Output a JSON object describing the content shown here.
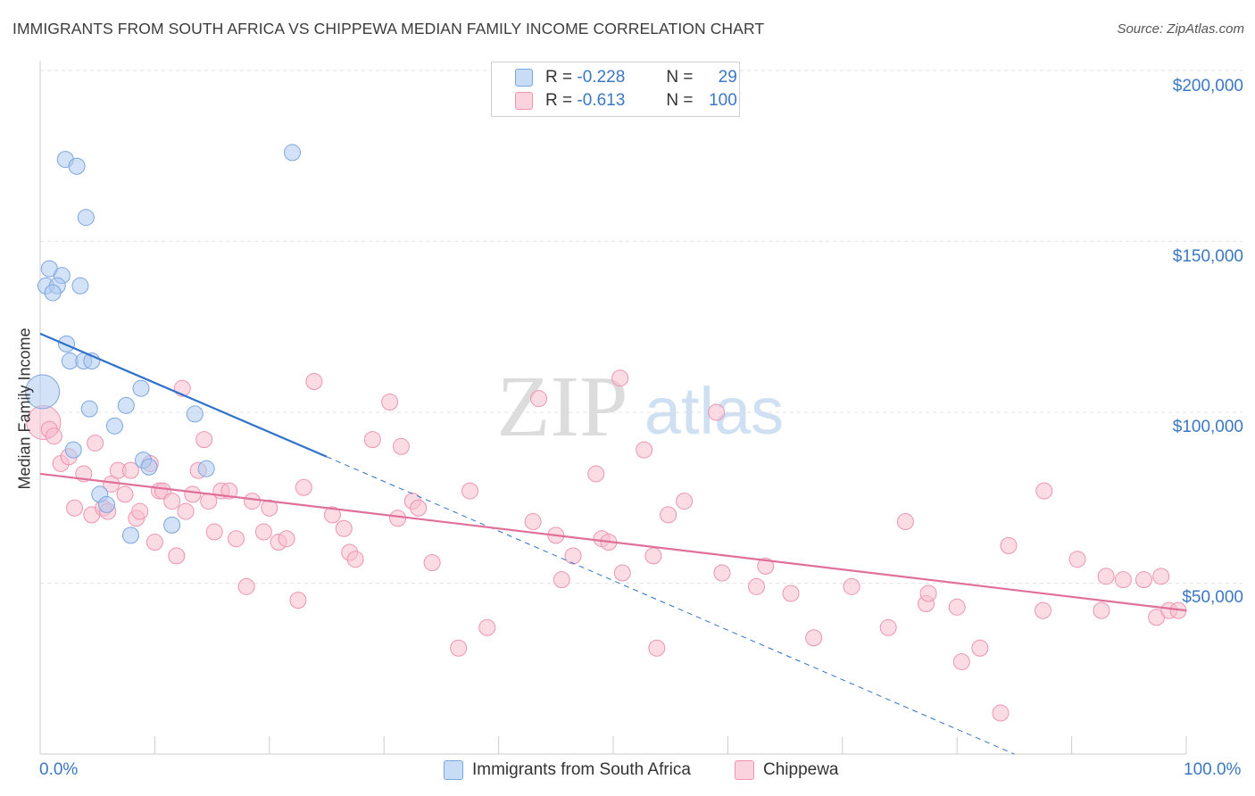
{
  "title": "IMMIGRANTS FROM SOUTH AFRICA VS CHIPPEWA MEDIAN FAMILY INCOME CORRELATION CHART",
  "source": "Source: ZipAtlas.com",
  "watermark": {
    "zip": "ZIP",
    "atlas": "atlas"
  },
  "legend_top": {
    "rows": [
      {
        "r_label": "R =",
        "r_value": "-0.228",
        "n_label": "N =",
        "n_value": "29",
        "color": "#aecbf0"
      },
      {
        "r_label": "R =",
        "r_value": "-0.613",
        "n_label": "N =",
        "n_value": "100",
        "color": "#f7bfd0"
      }
    ]
  },
  "legend_bottom": [
    {
      "label": "Immigrants from South Africa",
      "color": "#aecbf0"
    },
    {
      "label": "Chippewa",
      "color": "#f7bfd0"
    }
  ],
  "chart_data": {
    "type": "scatter",
    "title": "IMMIGRANTS FROM SOUTH AFRICA VS CHIPPEWA MEDIAN FAMILY INCOME CORRELATION CHART",
    "xlabel": "",
    "ylabel": "Median Family Income",
    "xlim": [
      0,
      100
    ],
    "ylim": [
      0,
      210000
    ],
    "x_tick_labels": [
      "0.0%",
      "100.0%"
    ],
    "y_ticks": [
      50000,
      100000,
      150000,
      200000
    ],
    "y_tick_labels": [
      "$50,000",
      "$100,000",
      "$150,000",
      "$200,000"
    ],
    "grid": true,
    "legend_position": "top-center",
    "series": [
      {
        "name": "Immigrants from South Africa",
        "color": "#aecbf0",
        "stroke": "#7aa6df",
        "trend_color": "#2f72c9",
        "trend": {
          "x0": 0,
          "y0": 123000,
          "x1": 25,
          "y1": 87000,
          "dash_to_x": 85,
          "dash_to_y": 0
        },
        "points": [
          {
            "x": 2.2,
            "y": 174000
          },
          {
            "x": 3.2,
            "y": 172000
          },
          {
            "x": 22.0,
            "y": 176000
          },
          {
            "x": 4.0,
            "y": 157000
          },
          {
            "x": 0.8,
            "y": 142000
          },
          {
            "x": 1.9,
            "y": 140000
          },
          {
            "x": 0.5,
            "y": 137000
          },
          {
            "x": 1.5,
            "y": 137000
          },
          {
            "x": 3.5,
            "y": 137000
          },
          {
            "x": 1.1,
            "y": 135000
          },
          {
            "x": 2.3,
            "y": 120000
          },
          {
            "x": 2.6,
            "y": 115000
          },
          {
            "x": 3.8,
            "y": 115000
          },
          {
            "x": 4.5,
            "y": 115000
          },
          {
            "x": 0.2,
            "y": 106000,
            "size": "large"
          },
          {
            "x": 8.8,
            "y": 107000
          },
          {
            "x": 4.3,
            "y": 101000
          },
          {
            "x": 7.5,
            "y": 102000
          },
          {
            "x": 13.5,
            "y": 99500
          },
          {
            "x": 6.5,
            "y": 96000
          },
          {
            "x": 2.9,
            "y": 89000
          },
          {
            "x": 9.0,
            "y": 86000
          },
          {
            "x": 9.5,
            "y": 84000
          },
          {
            "x": 14.5,
            "y": 83500
          },
          {
            "x": 5.2,
            "y": 76000
          },
          {
            "x": 5.8,
            "y": 73000
          },
          {
            "x": 11.5,
            "y": 67000
          },
          {
            "x": 7.9,
            "y": 64000
          }
        ]
      },
      {
        "name": "Chippewa",
        "color": "#f7bfd0",
        "stroke": "#ee94b1",
        "trend_color": "#e0709a",
        "trend": {
          "x0": 0,
          "y0": 82000,
          "x1": 100,
          "y1": 42000
        },
        "points": [
          {
            "x": 0.3,
            "y": 97000,
            "size": "large"
          },
          {
            "x": 0.8,
            "y": 95000
          },
          {
            "x": 1.2,
            "y": 93000
          },
          {
            "x": 1.8,
            "y": 85000
          },
          {
            "x": 2.5,
            "y": 87000
          },
          {
            "x": 3.0,
            "y": 72000
          },
          {
            "x": 3.8,
            "y": 82000
          },
          {
            "x": 4.5,
            "y": 70000
          },
          {
            "x": 4.8,
            "y": 91000
          },
          {
            "x": 5.5,
            "y": 72000
          },
          {
            "x": 5.9,
            "y": 71000
          },
          {
            "x": 6.2,
            "y": 79000
          },
          {
            "x": 6.8,
            "y": 83000
          },
          {
            "x": 7.4,
            "y": 76000
          },
          {
            "x": 7.9,
            "y": 83000
          },
          {
            "x": 8.4,
            "y": 69000
          },
          {
            "x": 8.7,
            "y": 71000
          },
          {
            "x": 9.6,
            "y": 85000
          },
          {
            "x": 10.0,
            "y": 62000
          },
          {
            "x": 10.4,
            "y": 77000
          },
          {
            "x": 10.7,
            "y": 77000
          },
          {
            "x": 11.5,
            "y": 74000
          },
          {
            "x": 11.9,
            "y": 58000
          },
          {
            "x": 12.7,
            "y": 71000
          },
          {
            "x": 12.4,
            "y": 107000
          },
          {
            "x": 13.3,
            "y": 76000
          },
          {
            "x": 13.8,
            "y": 83000
          },
          {
            "x": 14.3,
            "y": 92000
          },
          {
            "x": 14.7,
            "y": 74000
          },
          {
            "x": 15.2,
            "y": 65000
          },
          {
            "x": 15.8,
            "y": 77000
          },
          {
            "x": 16.5,
            "y": 77000
          },
          {
            "x": 17.1,
            "y": 63000
          },
          {
            "x": 18.0,
            "y": 49000
          },
          {
            "x": 18.5,
            "y": 74000
          },
          {
            "x": 19.5,
            "y": 65000
          },
          {
            "x": 20.0,
            "y": 72000
          },
          {
            "x": 20.8,
            "y": 62000
          },
          {
            "x": 21.5,
            "y": 63000
          },
          {
            "x": 22.5,
            "y": 45000
          },
          {
            "x": 23.0,
            "y": 78000
          },
          {
            "x": 23.9,
            "y": 109000
          },
          {
            "x": 25.5,
            "y": 70000
          },
          {
            "x": 26.5,
            "y": 66000
          },
          {
            "x": 27.0,
            "y": 59000
          },
          {
            "x": 27.5,
            "y": 57000
          },
          {
            "x": 29.0,
            "y": 92000
          },
          {
            "x": 30.5,
            "y": 103000
          },
          {
            "x": 31.2,
            "y": 69000
          },
          {
            "x": 31.5,
            "y": 90000
          },
          {
            "x": 32.5,
            "y": 74000
          },
          {
            "x": 33.0,
            "y": 72000
          },
          {
            "x": 34.2,
            "y": 56000
          },
          {
            "x": 36.5,
            "y": 31000
          },
          {
            "x": 37.5,
            "y": 77000
          },
          {
            "x": 39.0,
            "y": 37000
          },
          {
            "x": 43.0,
            "y": 68000
          },
          {
            "x": 43.5,
            "y": 104000
          },
          {
            "x": 45.0,
            "y": 64000
          },
          {
            "x": 45.5,
            "y": 51000
          },
          {
            "x": 46.5,
            "y": 58000
          },
          {
            "x": 48.5,
            "y": 82000
          },
          {
            "x": 49.0,
            "y": 63000
          },
          {
            "x": 49.6,
            "y": 62000
          },
          {
            "x": 50.6,
            "y": 110000
          },
          {
            "x": 50.8,
            "y": 53000
          },
          {
            "x": 52.7,
            "y": 89000
          },
          {
            "x": 53.5,
            "y": 58000
          },
          {
            "x": 53.8,
            "y": 31000
          },
          {
            "x": 54.8,
            "y": 70000
          },
          {
            "x": 56.2,
            "y": 74000
          },
          {
            "x": 59.0,
            "y": 100000
          },
          {
            "x": 59.5,
            "y": 53000
          },
          {
            "x": 62.5,
            "y": 49000
          },
          {
            "x": 63.3,
            "y": 55000
          },
          {
            "x": 65.5,
            "y": 47000
          },
          {
            "x": 67.5,
            "y": 34000
          },
          {
            "x": 70.8,
            "y": 49000
          },
          {
            "x": 74.0,
            "y": 37000
          },
          {
            "x": 75.5,
            "y": 68000
          },
          {
            "x": 77.3,
            "y": 44000
          },
          {
            "x": 77.5,
            "y": 47000
          },
          {
            "x": 80.0,
            "y": 43000
          },
          {
            "x": 80.4,
            "y": 27000
          },
          {
            "x": 82.0,
            "y": 31000
          },
          {
            "x": 83.8,
            "y": 12000
          },
          {
            "x": 84.5,
            "y": 61000
          },
          {
            "x": 87.5,
            "y": 42000
          },
          {
            "x": 87.6,
            "y": 77000
          },
          {
            "x": 90.5,
            "y": 57000
          },
          {
            "x": 92.6,
            "y": 42000
          },
          {
            "x": 93.0,
            "y": 52000
          },
          {
            "x": 94.5,
            "y": 51000
          },
          {
            "x": 96.3,
            "y": 51000
          },
          {
            "x": 97.4,
            "y": 40000
          },
          {
            "x": 97.8,
            "y": 52000
          },
          {
            "x": 98.5,
            "y": 42000
          },
          {
            "x": 99.3,
            "y": 42000
          }
        ]
      }
    ]
  }
}
